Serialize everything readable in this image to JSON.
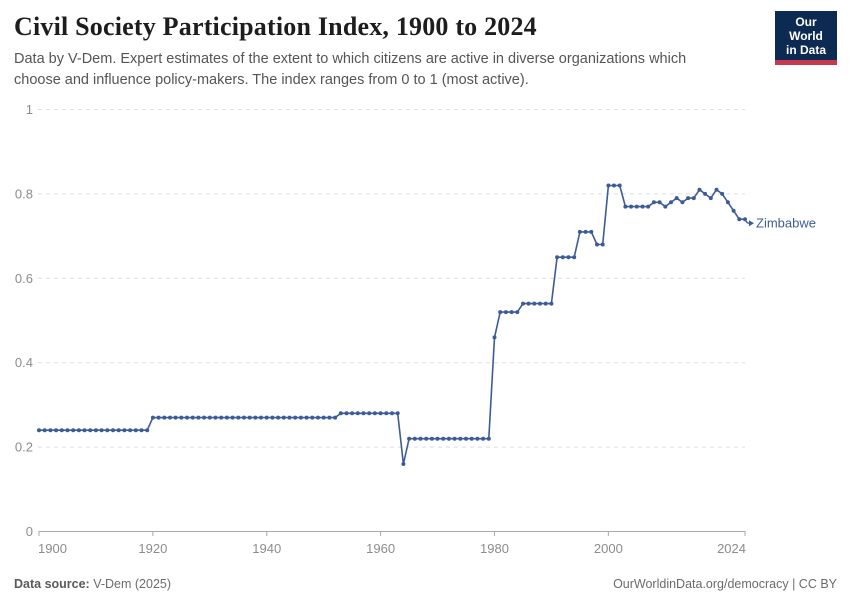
{
  "header": {
    "title": "Civil Society Participation Index, 1900 to 2024",
    "subtitle": "Data by V-Dem. Expert estimates of the extent to which citizens are active in diverse organizations which choose and influence policy-makers. The index ranges from 0 to 1 (most active).",
    "logo": {
      "line1": "Our World",
      "line2": "in Data",
      "bg_color": "#0d2b52",
      "bar_color": "#c4394b"
    }
  },
  "chart_data": {
    "type": "line",
    "title": "Civil Society Participation Index, 1900 to 2024",
    "xlabel": "",
    "ylabel": "",
    "xlim": [
      1900,
      2024
    ],
    "ylim": [
      0,
      1
    ],
    "xticks": [
      1900,
      1920,
      1940,
      1960,
      1980,
      2000,
      2024
    ],
    "yticks": [
      0,
      0.2,
      0.4,
      0.6,
      0.8,
      1
    ],
    "grid": "horizontal-dashed",
    "legend_position": "end-of-line-label",
    "colors": {
      "grid": "#dedede",
      "axis": "#a8a8a8",
      "tick_label": "#8c8c8c"
    },
    "series": [
      {
        "name": "Zimbabwe",
        "color": "#3d5c96",
        "marker": "circle",
        "years": [
          1900,
          1901,
          1902,
          1903,
          1904,
          1905,
          1906,
          1907,
          1908,
          1909,
          1910,
          1911,
          1912,
          1913,
          1914,
          1915,
          1916,
          1917,
          1918,
          1919,
          1920,
          1921,
          1922,
          1923,
          1924,
          1925,
          1926,
          1927,
          1928,
          1929,
          1930,
          1931,
          1932,
          1933,
          1934,
          1935,
          1936,
          1937,
          1938,
          1939,
          1940,
          1941,
          1942,
          1943,
          1944,
          1945,
          1946,
          1947,
          1948,
          1949,
          1950,
          1951,
          1952,
          1953,
          1954,
          1955,
          1956,
          1957,
          1958,
          1959,
          1960,
          1961,
          1962,
          1963,
          1964,
          1965,
          1966,
          1967,
          1968,
          1969,
          1970,
          1971,
          1972,
          1973,
          1974,
          1975,
          1976,
          1977,
          1978,
          1979,
          1980,
          1981,
          1982,
          1983,
          1984,
          1985,
          1986,
          1987,
          1988,
          1989,
          1990,
          1991,
          1992,
          1993,
          1994,
          1995,
          1996,
          1997,
          1998,
          1999,
          2000,
          2001,
          2002,
          2003,
          2004,
          2005,
          2006,
          2007,
          2008,
          2009,
          2010,
          2011,
          2012,
          2013,
          2014,
          2015,
          2016,
          2017,
          2018,
          2019,
          2020,
          2021,
          2022,
          2023,
          2024
        ],
        "values": [
          0.24,
          0.24,
          0.24,
          0.24,
          0.24,
          0.24,
          0.24,
          0.24,
          0.24,
          0.24,
          0.24,
          0.24,
          0.24,
          0.24,
          0.24,
          0.24,
          0.24,
          0.24,
          0.24,
          0.24,
          0.27,
          0.27,
          0.27,
          0.27,
          0.27,
          0.27,
          0.27,
          0.27,
          0.27,
          0.27,
          0.27,
          0.27,
          0.27,
          0.27,
          0.27,
          0.27,
          0.27,
          0.27,
          0.27,
          0.27,
          0.27,
          0.27,
          0.27,
          0.27,
          0.27,
          0.27,
          0.27,
          0.27,
          0.27,
          0.27,
          0.27,
          0.27,
          0.27,
          0.28,
          0.28,
          0.28,
          0.28,
          0.28,
          0.28,
          0.28,
          0.28,
          0.28,
          0.28,
          0.28,
          0.16,
          0.22,
          0.22,
          0.22,
          0.22,
          0.22,
          0.22,
          0.22,
          0.22,
          0.22,
          0.22,
          0.22,
          0.22,
          0.22,
          0.22,
          0.22,
          0.46,
          0.52,
          0.52,
          0.52,
          0.52,
          0.54,
          0.54,
          0.54,
          0.54,
          0.54,
          0.54,
          0.65,
          0.65,
          0.65,
          0.65,
          0.71,
          0.71,
          0.71,
          0.68,
          0.68,
          0.82,
          0.82,
          0.82,
          0.77,
          0.77,
          0.77,
          0.77,
          0.77,
          0.78,
          0.78,
          0.77,
          0.78,
          0.79,
          0.78,
          0.79,
          0.79,
          0.81,
          0.8,
          0.79,
          0.81,
          0.8,
          0.78,
          0.76,
          0.74,
          0.74
        ]
      }
    ]
  },
  "footer": {
    "source_label": "Data source:",
    "source_value": " V-Dem (2025)",
    "site_link": "OurWorldinData.org/democracy",
    "separator": " | ",
    "license": "CC BY"
  }
}
